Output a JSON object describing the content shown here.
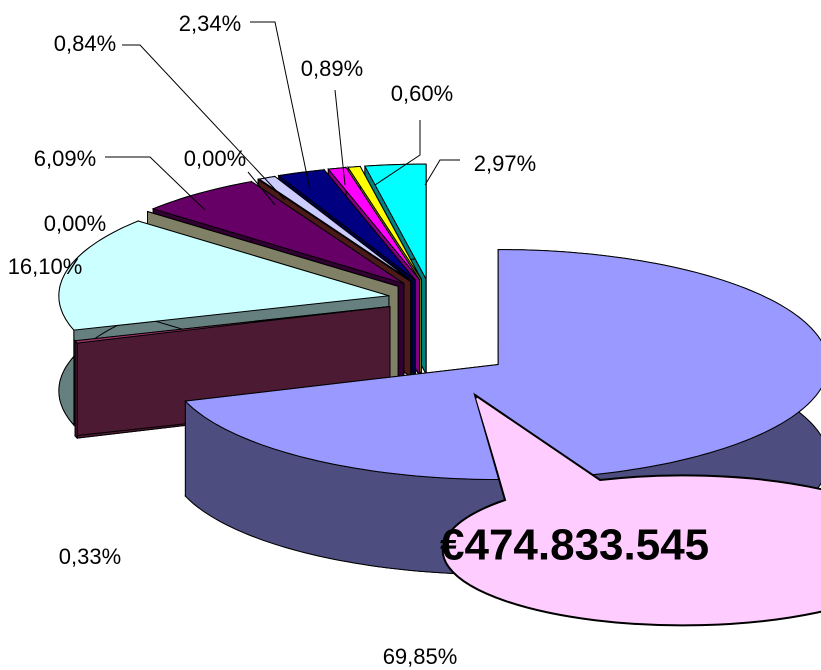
{
  "chart_data": {
    "type": "pie3d",
    "values": [
      69.85,
      0.33,
      16.1,
      0.0,
      6.09,
      0.0,
      0.84,
      2.34,
      0.89,
      0.6,
      2.97
    ],
    "value_labels": [
      "69,85%",
      "0,33%",
      "16,10%",
      "0,00%",
      "6,09%",
      "0,00%",
      "0,84%",
      "2,34%",
      "0,89%",
      "0,60%",
      "2,97%"
    ],
    "colors": [
      "#9999FF",
      "#993366",
      "#CCFFFF",
      "#FFFFCC",
      "#660066",
      "#993333",
      "#CCCCFF",
      "#000080",
      "#FF00FF",
      "#FFFF00",
      "#00FFFF"
    ],
    "annotation": "€474.833.545"
  }
}
